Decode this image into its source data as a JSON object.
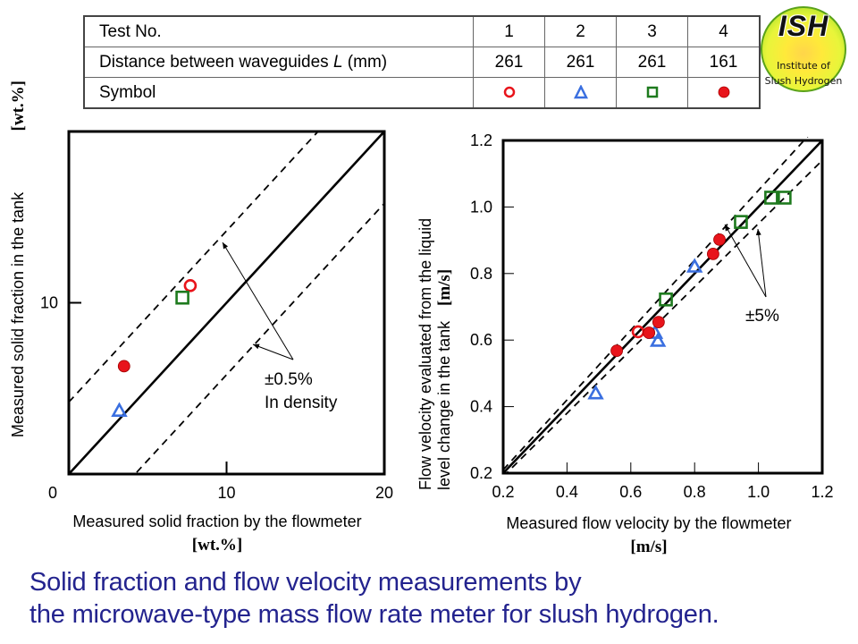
{
  "legend_table": {
    "rows": [
      {
        "label": "Test No.",
        "values": [
          "1",
          "2",
          "3",
          "4"
        ]
      },
      {
        "label_main": "Distance between waveguides ",
        "label_italic": "L",
        "label_tail": " (mm)",
        "values": [
          "261",
          "261",
          "261",
          "161"
        ]
      },
      {
        "label": "Symbol",
        "symbols": [
          "open-circle-red",
          "open-triangle-blue",
          "open-square-green",
          "filled-circle-red"
        ]
      }
    ]
  },
  "logo": {
    "title": "ISH",
    "line1": "Institute of",
    "line2": "Slush Hydrogen"
  },
  "colors": {
    "test1": "#e8141b",
    "test2": "#3a6fe0",
    "test3": "#1e7a1e",
    "test4": "#e8141b",
    "caption": "#23238e"
  },
  "caption": {
    "line1": "Solid fraction and flow velocity measurements by",
    "line2": "the microwave-type mass flow rate meter for slush hydrogen."
  },
  "chart_data": [
    {
      "type": "scatter",
      "title": "",
      "xlabel": "Measured solid fraction by the flowmeter",
      "xlabel_unit": "[wt.%]",
      "ylabel": "Measured solid fraction in the tank",
      "ylabel_unit": "[wt.%]",
      "xlim": [
        0,
        20
      ],
      "ylim": [
        0,
        20
      ],
      "xticks": [
        0,
        10,
        20
      ],
      "xtick_labels": [
        "0",
        "10",
        "20"
      ],
      "yticks": [
        10
      ],
      "ytick_labels": [
        "10"
      ],
      "x_zero_label": "0",
      "grid": false,
      "reference_lines": [
        {
          "name": "identity",
          "style": "solid",
          "offset": 0
        },
        {
          "name": "upper-bound",
          "style": "dashed",
          "offset": 4.2
        },
        {
          "name": "lower-bound",
          "style": "dashed",
          "offset": -4.2
        }
      ],
      "annotation": {
        "line1": "±0.5%",
        "line2": "In density"
      },
      "series": [
        {
          "name": "Test 1",
          "marker": "open-circle",
          "points": [
            [
              7.7,
              11.0
            ]
          ]
        },
        {
          "name": "Test 2",
          "marker": "open-triangle",
          "points": [
            [
              3.2,
              3.7
            ]
          ]
        },
        {
          "name": "Test 3",
          "marker": "open-square",
          "points": [
            [
              7.2,
              10.3
            ]
          ]
        },
        {
          "name": "Test 4",
          "marker": "filled-circle",
          "points": [
            [
              3.5,
              6.3
            ]
          ]
        }
      ]
    },
    {
      "type": "scatter",
      "title": "",
      "xlabel": "Measured flow velocity by the flowmeter",
      "xlabel_unit": "[m/s]",
      "ylabel_line1": "Flow velocity evaluated from the liquid",
      "ylabel_line2": "level change in the tank",
      "ylabel_unit": "[m/s]",
      "xlim": [
        0.2,
        1.2
      ],
      "ylim": [
        0.2,
        1.2
      ],
      "xticks": [
        0.2,
        0.4,
        0.6,
        0.8,
        1.0,
        1.2
      ],
      "xtick_labels": [
        "0.2",
        "0.4",
        "0.6",
        "0.8",
        "1.0",
        "1.2"
      ],
      "yticks": [
        0.2,
        0.4,
        0.6,
        0.8,
        1.0,
        1.2
      ],
      "ytick_labels": [
        "0.2",
        "0.4",
        "0.6",
        "0.8",
        "1.0",
        "1.2"
      ],
      "grid": false,
      "reference_lines": [
        {
          "name": "identity",
          "style": "solid",
          "factor": 1.0
        },
        {
          "name": "upper-bound",
          "style": "dashed",
          "factor": 1.05
        },
        {
          "name": "lower-bound",
          "style": "dashed",
          "factor": 0.95
        }
      ],
      "annotation": {
        "line1": "±5%"
      },
      "series": [
        {
          "name": "Test 1",
          "marker": "open-circle",
          "points": [
            [
              0.623,
              0.625
            ]
          ]
        },
        {
          "name": "Test 2",
          "marker": "open-triangle",
          "points": [
            [
              0.49,
              0.44
            ],
            [
              0.676,
              0.622
            ],
            [
              0.685,
              0.598
            ],
            [
              0.8,
              0.821
            ]
          ]
        },
        {
          "name": "Test 3",
          "marker": "open-square",
          "points": [
            [
              0.71,
              0.722
            ],
            [
              0.945,
              0.955
            ],
            [
              1.04,
              1.028
            ],
            [
              1.082,
              1.028
            ]
          ]
        },
        {
          "name": "Test 4",
          "marker": "filled-circle",
          "points": [
            [
              0.556,
              0.568
            ],
            [
              0.657,
              0.622
            ],
            [
              0.687,
              0.654
            ],
            [
              0.858,
              0.859
            ],
            [
              0.878,
              0.902
            ]
          ]
        }
      ]
    }
  ]
}
